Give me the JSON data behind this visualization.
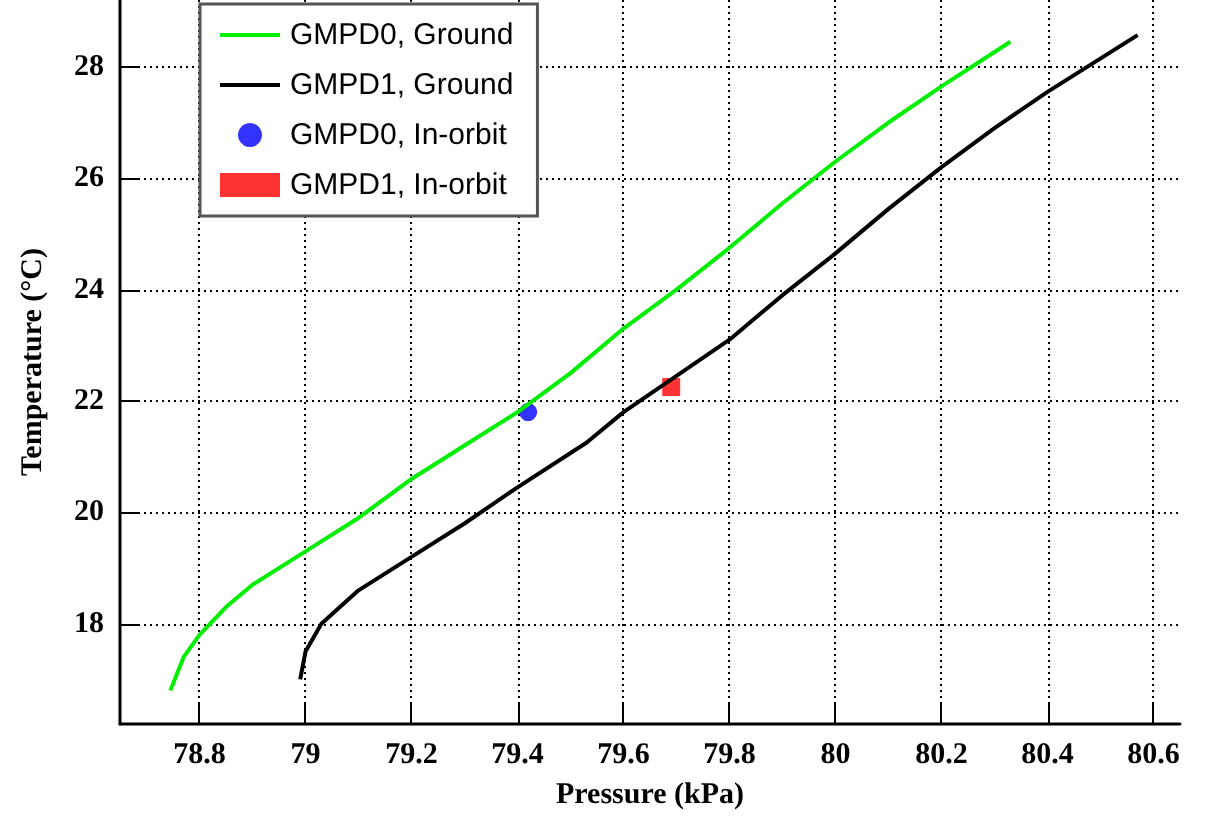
{
  "chart_data": {
    "type": "line",
    "xlabel": "Pressure (kPa)",
    "ylabel": "Temperature (°C)",
    "xlim": [
      78.65,
      80.65
    ],
    "xticks": [
      78.8,
      79,
      79.2,
      79.4,
      79.6,
      79.8,
      80,
      80.2,
      80.4,
      80.6
    ],
    "ylim": [
      16.2,
      29.2
    ],
    "yticks": [
      18,
      20,
      22,
      24,
      26,
      28
    ],
    "grid": true,
    "legend": "top left",
    "series": [
      {
        "name": "GMPD0, Ground",
        "color": "#00ee00",
        "marker": "none",
        "x": [
          78.745,
          78.77,
          78.8,
          78.85,
          78.9,
          79.0,
          79.1,
          79.2,
          79.3,
          79.4,
          79.5,
          79.6,
          79.7,
          79.8,
          79.9,
          80.0,
          80.1,
          80.2,
          80.33
        ],
        "values": [
          16.8,
          17.4,
          17.8,
          18.3,
          18.7,
          19.3,
          19.9,
          20.6,
          21.2,
          21.8,
          22.5,
          23.3,
          24.0,
          24.75,
          25.55,
          26.3,
          27.0,
          27.65,
          28.45
        ]
      },
      {
        "name": "GMPD1, Ground",
        "color": "#000000",
        "marker": "none",
        "x": [
          78.99,
          79.0,
          79.03,
          79.1,
          79.2,
          79.3,
          79.4,
          79.53,
          79.6,
          79.7,
          79.8,
          79.9,
          80.0,
          80.1,
          80.2,
          80.3,
          80.4,
          80.57
        ],
        "values": [
          17.0,
          17.5,
          18.0,
          18.6,
          19.2,
          19.8,
          20.45,
          21.25,
          21.8,
          22.45,
          23.1,
          23.9,
          24.65,
          25.45,
          26.2,
          26.9,
          27.55,
          28.57
        ]
      },
      {
        "name": "GMPD0, In-orbit",
        "type": "scatter",
        "color": "#0000ff",
        "marker": "circle",
        "x": [
          79.42
        ],
        "values": [
          21.8
        ]
      },
      {
        "name": "GMPD1, In-orbit",
        "type": "scatter",
        "color": "#ff0000",
        "marker": "square",
        "x": [
          79.69
        ],
        "values": [
          22.25
        ]
      }
    ]
  }
}
